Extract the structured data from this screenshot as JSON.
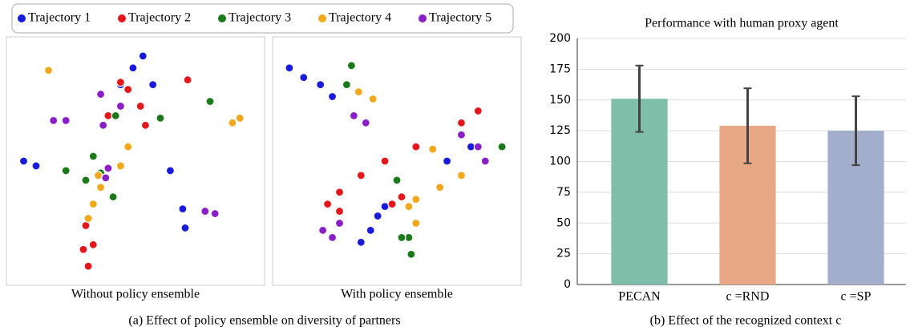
{
  "figure_captions": [
    "(a) Effect of policy ensemble on diversity of partners",
    "(b) Effect of the recognized context c"
  ],
  "chart_data": [
    {
      "type": "scatter",
      "caption": "Without policy ensemble",
      "xlim": [
        0,
        100
      ],
      "ylim": [
        0,
        100
      ],
      "series": [
        {
          "name": "Trajectory 1",
          "color": "#1a1adb",
          "x": [
            49,
            53,
            57,
            5,
            10,
            64,
            69,
            70,
            44,
            36
          ],
          "values": [
            89,
            94,
            82,
            50,
            48,
            46,
            30,
            22,
            82,
            78
          ]
        },
        {
          "name": "Trajectory 2",
          "color": "#e3171c",
          "x": [
            44,
            47,
            54,
            71,
            30,
            29,
            33,
            31,
            52,
            39
          ],
          "values": [
            83,
            80,
            65,
            84,
            23,
            13,
            15,
            6,
            73,
            69
          ]
        },
        {
          "name": "Trajectory 3",
          "color": "#1a7a1a",
          "x": [
            80,
            60,
            42,
            33,
            22,
            36,
            41,
            30
          ],
          "values": [
            75,
            68,
            69,
            52,
            46,
            45,
            35,
            42
          ]
        },
        {
          "name": "Trajectory 4",
          "color": "#f2a81d",
          "x": [
            15,
            89,
            92,
            47,
            44,
            36,
            33,
            31,
            35
          ],
          "values": [
            88,
            66,
            68,
            56,
            48,
            39,
            32,
            26,
            44
          ]
        },
        {
          "name": "Trajectory 5",
          "color": "#8b1fc7",
          "x": [
            17,
            22,
            36,
            44,
            37,
            78,
            82,
            39,
            38
          ],
          "values": [
            67,
            67,
            78,
            73,
            65,
            29,
            28,
            47,
            43
          ]
        }
      ]
    },
    {
      "type": "scatter",
      "caption": "With policy ensemble",
      "xlim": [
        0,
        100
      ],
      "ylim": [
        0,
        100
      ],
      "series": [
        {
          "color": "#1a1adb",
          "x": [
            5,
            11,
            18,
            23,
            81,
            71,
            39,
            42,
            45,
            35
          ],
          "values": [
            89,
            85,
            82,
            77,
            56,
            50,
            21,
            27,
            31,
            16
          ]
        },
        {
          "color": "#e3171c",
          "x": [
            84,
            77,
            58,
            45,
            35,
            26,
            21,
            26,
            52,
            48
          ],
          "values": [
            71,
            66,
            56,
            50,
            44,
            37,
            32,
            29,
            35,
            32
          ]
        },
        {
          "color": "#1a7a1a",
          "x": [
            31,
            29,
            94,
            50,
            56,
            55,
            52
          ],
          "values": [
            90,
            82,
            56,
            42,
            11,
            18,
            18
          ]
        },
        {
          "color": "#f2a81d",
          "x": [
            34,
            40,
            65,
            77,
            68,
            58,
            58,
            55
          ],
          "values": [
            79,
            76,
            55,
            44,
            39,
            34,
            24,
            31
          ]
        },
        {
          "color": "#8b1fc7",
          "x": [
            32,
            37,
            77,
            87,
            19,
            23,
            26,
            84
          ],
          "values": [
            69,
            66,
            61,
            50,
            21,
            18,
            24,
            56
          ]
        }
      ]
    },
    {
      "type": "bar",
      "title": "Performance with human proxy agent",
      "categories": [
        "PECAN",
        "c =RND",
        "c =SP"
      ],
      "values": [
        151,
        129,
        125
      ],
      "errors": [
        27,
        30.5,
        28
      ],
      "colors": [
        "#7fbfaa",
        "#e8a785",
        "#a2aecc"
      ],
      "error_color": "#444444",
      "ylim": [
        0,
        200
      ],
      "yticks": [
        0,
        25,
        50,
        75,
        100,
        125,
        150,
        175,
        200
      ],
      "grid": true
    }
  ]
}
